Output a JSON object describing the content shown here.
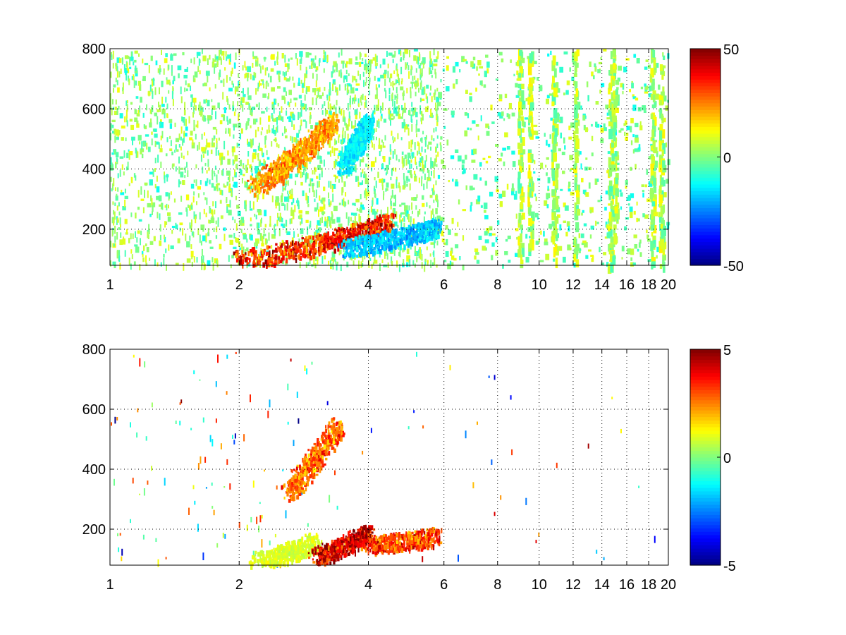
{
  "chart_data": [
    {
      "type": "heatmap",
      "title": "",
      "xlabel": "",
      "ylabel": "",
      "xlim": [
        1,
        20
      ],
      "ylim": [
        80,
        800
      ],
      "x_scale": "log",
      "xticks": [
        {
          "value": 1,
          "label": "1"
        },
        {
          "value": 2,
          "label": "2"
        },
        {
          "value": 4,
          "label": "4"
        },
        {
          "value": 6,
          "label": "6"
        },
        {
          "value": 8,
          "label": "8"
        },
        {
          "value": 10,
          "label": "10"
        },
        {
          "value": 12,
          "label": "12"
        },
        {
          "value": 14,
          "label": "14"
        },
        {
          "value": 16,
          "label": "16"
        },
        {
          "value": 18,
          "label": "18"
        },
        {
          "value": 20,
          "label": "20"
        }
      ],
      "yticks": [
        {
          "value": 200,
          "label": "200"
        },
        {
          "value": 400,
          "label": "400"
        },
        {
          "value": 600,
          "label": "600"
        },
        {
          "value": 800,
          "label": "800"
        }
      ],
      "grid": true,
      "colormap": "jet",
      "colorbar": {
        "min": -50,
        "max": 50,
        "ticks": [
          {
            "value": 50,
            "label": "50"
          },
          {
            "value": 0,
            "label": "0"
          },
          {
            "value": -50,
            "label": "-50"
          }
        ]
      },
      "features": [
        {
          "x": [
            2.2,
            3.3
          ],
          "y": [
            350,
            560
          ],
          "value": 25,
          "spread": "ridge"
        },
        {
          "x": [
            2.0,
            4.5
          ],
          "y": [
            100,
            230
          ],
          "value": 40,
          "spread": "ridge"
        },
        {
          "x": [
            3.5,
            5.8
          ],
          "y": [
            140,
            210
          ],
          "value": -20,
          "spread": "ridge"
        },
        {
          "x": [
            3.5,
            4.0
          ],
          "y": [
            420,
            560
          ],
          "value": -15,
          "spread": "ridge"
        }
      ],
      "columns": [
        9.0,
        9.5,
        10.8,
        12.1,
        14.6,
        14.9,
        18.3,
        19.2
      ],
      "noise_value_range": [
        -12,
        12
      ],
      "noise_density": "high"
    },
    {
      "type": "heatmap",
      "title": "",
      "xlabel": "",
      "ylabel": "",
      "xlim": [
        1,
        20
      ],
      "ylim": [
        80,
        800
      ],
      "x_scale": "log",
      "xticks": [
        {
          "value": 1,
          "label": "1"
        },
        {
          "value": 2,
          "label": "2"
        },
        {
          "value": 4,
          "label": "4"
        },
        {
          "value": 6,
          "label": "6"
        },
        {
          "value": 8,
          "label": "8"
        },
        {
          "value": 10,
          "label": "10"
        },
        {
          "value": 12,
          "label": "12"
        },
        {
          "value": 14,
          "label": "14"
        },
        {
          "value": 16,
          "label": "16"
        },
        {
          "value": 18,
          "label": "18"
        },
        {
          "value": 20,
          "label": "20"
        }
      ],
      "yticks": [
        {
          "value": 200,
          "label": "200"
        },
        {
          "value": 400,
          "label": "400"
        },
        {
          "value": 600,
          "label": "600"
        },
        {
          "value": 800,
          "label": "800"
        }
      ],
      "grid": true,
      "colormap": "jet",
      "colorbar": {
        "min": -5,
        "max": 5,
        "ticks": [
          {
            "value": 5,
            "label": "5"
          },
          {
            "value": 0,
            "label": "0"
          },
          {
            "value": -5,
            "label": "-5"
          }
        ]
      },
      "features": [
        {
          "x": [
            2.6,
            3.4
          ],
          "y": [
            330,
            550
          ],
          "value": 3,
          "spread": "ridge"
        },
        {
          "x": [
            2.2,
            3.0
          ],
          "y": [
            90,
            160
          ],
          "value": 1,
          "spread": "ridge"
        },
        {
          "x": [
            3.0,
            4.0
          ],
          "y": [
            110,
            190
          ],
          "value": 4.5,
          "spread": "ridge"
        },
        {
          "x": [
            4.0,
            5.8
          ],
          "y": [
            150,
            180
          ],
          "value": 3.5,
          "spread": "ridge"
        }
      ],
      "columns": [],
      "noise_value_range": [
        -5,
        5
      ],
      "noise_density": "low"
    }
  ]
}
